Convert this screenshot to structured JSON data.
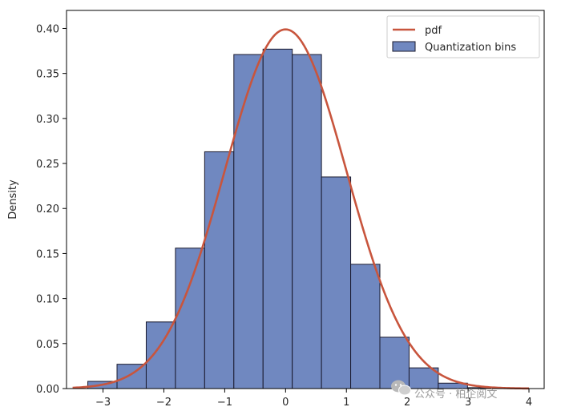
{
  "chart_data": {
    "type": "bar",
    "title": "",
    "xlabel": "",
    "ylabel": "Density",
    "xlim": [
      -3.6,
      4.25
    ],
    "ylim": [
      0,
      0.42
    ],
    "grid": false,
    "legend_position": "top-right",
    "x_ticks": [
      -3,
      -2,
      -1,
      0,
      1,
      2,
      3,
      4
    ],
    "x_tick_labels": [
      "−3",
      "−2",
      "−1",
      "0",
      "1",
      "2",
      "3",
      "4"
    ],
    "y_ticks": [
      0,
      0.05,
      0.1,
      0.15,
      0.2,
      0.25,
      0.3,
      0.35,
      0.4
    ],
    "y_tick_labels": [
      "0.00",
      "0.05",
      "0.10",
      "0.15",
      "0.20",
      "0.25",
      "0.30",
      "0.35",
      "0.40"
    ],
    "bins": {
      "edges": [
        -3.25,
        -2.77,
        -2.29,
        -1.81,
        -1.33,
        -0.85,
        -0.37,
        0.11,
        0.59,
        1.07,
        1.55,
        2.03,
        2.51,
        2.99,
        3.45
      ],
      "values": [
        0.008,
        0.027,
        0.074,
        0.156,
        0.263,
        0.371,
        0.377,
        0.371,
        0.235,
        0.138,
        0.057,
        0.023,
        0.006,
        0.001
      ]
    },
    "series": [
      {
        "name": "pdf",
        "kind": "line",
        "color": "#c8553d",
        "function": "standard normal density",
        "x_range": [
          -3.5,
          4.0
        ]
      },
      {
        "name": "Quantization bins",
        "kind": "bar",
        "color": "#7088c0",
        "edge_color": "#1a1a2e"
      }
    ]
  },
  "watermark": {
    "text": "公众号 · 柏企阅文",
    "icon": "wechat-icon"
  }
}
